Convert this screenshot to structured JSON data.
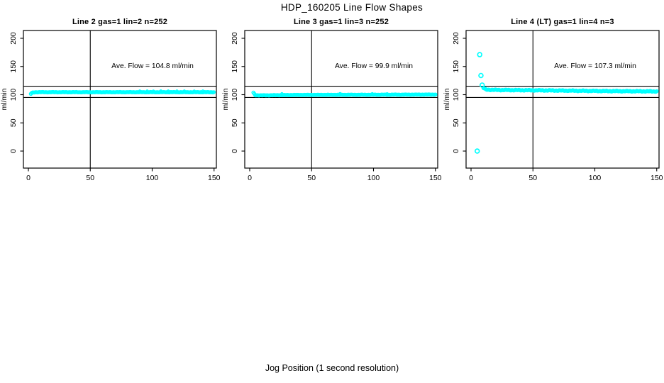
{
  "page": {
    "title": "HDP_160205  Line Flow Shapes",
    "xlabel": "Jog Position (1 second resolution)",
    "background_color": "#ffffff",
    "axis_color": "#000000"
  },
  "chart_data": [
    {
      "type": "scatter",
      "title": "Line 2 gas=1 lin=2 n=252",
      "annotation": "Ave. Flow =  104.8  ml/min",
      "ave_flow_ml_min": 104.8,
      "n": 252,
      "ylabel": "ml/min",
      "xlim": [
        0,
        150
      ],
      "ylim": [
        0,
        200
      ],
      "xticks": [
        0,
        50,
        100,
        150
      ],
      "yticks": [
        0,
        50,
        100,
        150,
        200
      ],
      "ref_lines_y": [
        95,
        115
      ],
      "vline_x": 50,
      "marker_color": "#00ffff",
      "band": {
        "x_start": 2,
        "x_end": 150,
        "step": 0.75,
        "jitter": 0.55,
        "path": [
          [
            2,
            101.5
          ],
          [
            3,
            103.5
          ],
          [
            6,
            104.4
          ],
          [
            150,
            104.4
          ]
        ]
      },
      "extra_points": [
        [
          90,
          106.6
        ],
        [
          96,
          106.7
        ],
        [
          101,
          106.5
        ],
        [
          107,
          106.8
        ],
        [
          113,
          106.6
        ],
        [
          120,
          106.7
        ],
        [
          126,
          106.6
        ],
        [
          134,
          106.5
        ],
        [
          141,
          106.7
        ]
      ],
      "outliers": []
    },
    {
      "type": "scatter",
      "title": "Line 3 gas=1 lin=3 n=252",
      "annotation": "Ave. Flow =  99.9  ml/min",
      "ave_flow_ml_min": 99.9,
      "n": 252,
      "ylabel": "ml/min",
      "xlim": [
        0,
        150
      ],
      "ylim": [
        0,
        200
      ],
      "xticks": [
        0,
        50,
        100,
        150
      ],
      "yticks": [
        0,
        50,
        100,
        150,
        200
      ],
      "ref_lines_y": [
        95,
        115
      ],
      "vline_x": 50,
      "marker_color": "#00ffff",
      "band": {
        "x_start": 3,
        "x_end": 150,
        "step": 0.75,
        "jitter": 0.55,
        "path": [
          [
            3,
            103.5
          ],
          [
            4.5,
            99.0
          ],
          [
            10,
            98.8
          ],
          [
            40,
            99.6
          ],
          [
            150,
            100.2
          ]
        ]
      },
      "extra_points": [
        [
          26,
          101.9
        ],
        [
          73,
          102.0
        ],
        [
          99,
          101.9
        ],
        [
          111,
          101.8
        ]
      ],
      "outliers": []
    },
    {
      "type": "scatter",
      "title": "Line 4 (LT) gas=1 lin=4 n=3",
      "annotation": "Ave. Flow =  107.3  ml/min",
      "ave_flow_ml_min": 107.3,
      "n": 3,
      "ylabel": "ml/min",
      "xlim": [
        0,
        150
      ],
      "ylim": [
        0,
        200
      ],
      "xticks": [
        0,
        50,
        100,
        150
      ],
      "yticks": [
        0,
        50,
        100,
        150,
        200
      ],
      "ref_lines_y": [
        95,
        115
      ],
      "vline_x": 50,
      "marker_color": "#00ffff",
      "band": {
        "x_start": 10,
        "x_end": 150,
        "step": 0.7,
        "jitter": 1.25,
        "path": [
          [
            10,
            112
          ],
          [
            12,
            109
          ],
          [
            20,
            108.4
          ],
          [
            60,
            107.6
          ],
          [
            110,
            106.4
          ],
          [
            150,
            105.8
          ]
        ]
      },
      "extra_points": [
        [
          11,
          110.5
        ],
        [
          12,
          109.8
        ]
      ],
      "outliers": [
        [
          5,
          0
        ],
        [
          7,
          171
        ],
        [
          8,
          134
        ],
        [
          9,
          117
        ]
      ]
    }
  ]
}
